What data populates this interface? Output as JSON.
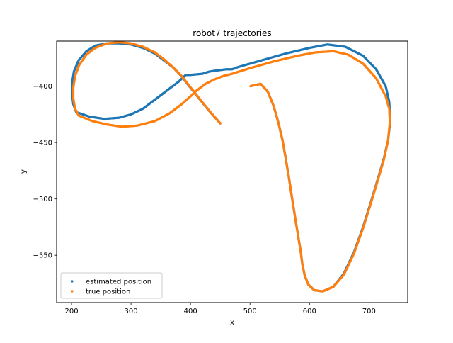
{
  "chart_data": {
    "type": "scatter",
    "title": "robot7 trajectories",
    "xlabel": "x",
    "ylabel": "y",
    "xlim": [
      175,
      765
    ],
    "ylim": [
      -592,
      -360
    ],
    "xticks": [
      200,
      300,
      400,
      500,
      600,
      700
    ],
    "yticks": [
      -550,
      -500,
      -450,
      -400
    ],
    "xtick_labels": [
      "200",
      "300",
      "400",
      "500",
      "600",
      "700"
    ],
    "ytick_labels": [
      "−550",
      "−500",
      "−450",
      "−400"
    ],
    "grid": false,
    "legend_position": "lower-left",
    "series": [
      {
        "name": "estimated position",
        "color": "#1f77b4",
        "points": [
          [
            450,
            -433
          ],
          [
            430,
            -421
          ],
          [
            410,
            -408
          ],
          [
            395,
            -398
          ],
          [
            383,
            -390
          ],
          [
            370,
            -383
          ],
          [
            355,
            -377
          ],
          [
            340,
            -371
          ],
          [
            320,
            -366
          ],
          [
            300,
            -363
          ],
          [
            280,
            -362
          ],
          [
            260,
            -362
          ],
          [
            240,
            -364
          ],
          [
            225,
            -369
          ],
          [
            212,
            -377
          ],
          [
            204,
            -387
          ],
          [
            201,
            -397
          ],
          [
            201,
            -407
          ],
          [
            203,
            -416
          ],
          [
            208,
            -423
          ],
          [
            230,
            -427
          ],
          [
            255,
            -429
          ],
          [
            280,
            -428
          ],
          [
            300,
            -425
          ],
          [
            320,
            -420
          ],
          [
            340,
            -412
          ],
          [
            360,
            -404
          ],
          [
            380,
            -396
          ],
          [
            392,
            -390
          ],
          [
            400,
            -390
          ],
          [
            420,
            -389
          ],
          [
            432,
            -387
          ],
          [
            445,
            -386
          ],
          [
            460,
            -385
          ],
          [
            470,
            -385
          ],
          [
            480,
            -383
          ],
          [
            520,
            -377
          ],
          [
            560,
            -371
          ],
          [
            600,
            -366
          ],
          [
            630,
            -363
          ],
          [
            660,
            -365
          ],
          [
            690,
            -373
          ],
          [
            712,
            -385
          ],
          [
            728,
            -400
          ],
          [
            734,
            -414
          ],
          [
            735,
            -425
          ],
          [
            735,
            -434
          ],
          [
            732,
            -448
          ],
          [
            725,
            -464
          ],
          [
            715,
            -482
          ],
          [
            703,
            -503
          ],
          [
            690,
            -525
          ],
          [
            675,
            -547
          ],
          [
            658,
            -566
          ],
          [
            640,
            -578
          ],
          [
            622,
            -582
          ],
          [
            608,
            -581
          ],
          [
            598,
            -576
          ],
          [
            592,
            -568
          ],
          [
            588,
            -558
          ],
          [
            585,
            -546
          ],
          [
            580,
            -530
          ],
          [
            575,
            -514
          ],
          [
            570,
            -497
          ],
          [
            565,
            -480
          ],
          [
            560,
            -464
          ],
          [
            555,
            -449
          ],
          [
            548,
            -433
          ],
          [
            540,
            -418
          ],
          [
            530,
            -405
          ],
          [
            518,
            -398
          ],
          [
            508,
            -399
          ],
          [
            501,
            -400
          ]
        ]
      },
      {
        "name": "true position",
        "color": "#ff7f0e",
        "points": [
          [
            450,
            -433
          ],
          [
            435,
            -424
          ],
          [
            415,
            -411
          ],
          [
            400,
            -401
          ],
          [
            385,
            -391
          ],
          [
            370,
            -383
          ],
          [
            355,
            -376
          ],
          [
            340,
            -370
          ],
          [
            320,
            -365
          ],
          [
            300,
            -362
          ],
          [
            280,
            -361
          ],
          [
            260,
            -362
          ],
          [
            240,
            -366
          ],
          [
            225,
            -372
          ],
          [
            213,
            -381
          ],
          [
            206,
            -391
          ],
          [
            203,
            -401
          ],
          [
            203,
            -411
          ],
          [
            206,
            -420
          ],
          [
            212,
            -426
          ],
          [
            235,
            -431
          ],
          [
            260,
            -434
          ],
          [
            285,
            -436
          ],
          [
            310,
            -435
          ],
          [
            340,
            -431
          ],
          [
            365,
            -424
          ],
          [
            385,
            -416
          ],
          [
            400,
            -409
          ],
          [
            410,
            -404
          ],
          [
            425,
            -398
          ],
          [
            440,
            -394
          ],
          [
            455,
            -391
          ],
          [
            470,
            -389
          ],
          [
            500,
            -384
          ],
          [
            540,
            -378
          ],
          [
            580,
            -373
          ],
          [
            610,
            -370
          ],
          [
            640,
            -369
          ],
          [
            665,
            -372
          ],
          [
            690,
            -380
          ],
          [
            712,
            -393
          ],
          [
            728,
            -409
          ],
          [
            734,
            -420
          ],
          [
            735,
            -432
          ],
          [
            732,
            -448
          ],
          [
            725,
            -465
          ],
          [
            715,
            -483
          ],
          [
            703,
            -504
          ],
          [
            690,
            -526
          ],
          [
            675,
            -548
          ],
          [
            658,
            -567
          ],
          [
            640,
            -578
          ],
          [
            622,
            -582
          ],
          [
            608,
            -581
          ],
          [
            598,
            -576
          ],
          [
            592,
            -568
          ],
          [
            588,
            -558
          ],
          [
            585,
            -546
          ],
          [
            580,
            -530
          ],
          [
            575,
            -514
          ],
          [
            570,
            -497
          ],
          [
            565,
            -480
          ],
          [
            560,
            -464
          ],
          [
            555,
            -449
          ],
          [
            548,
            -433
          ],
          [
            540,
            -418
          ],
          [
            530,
            -405
          ],
          [
            518,
            -398
          ],
          [
            508,
            -399
          ],
          [
            501,
            -400
          ]
        ]
      }
    ]
  }
}
